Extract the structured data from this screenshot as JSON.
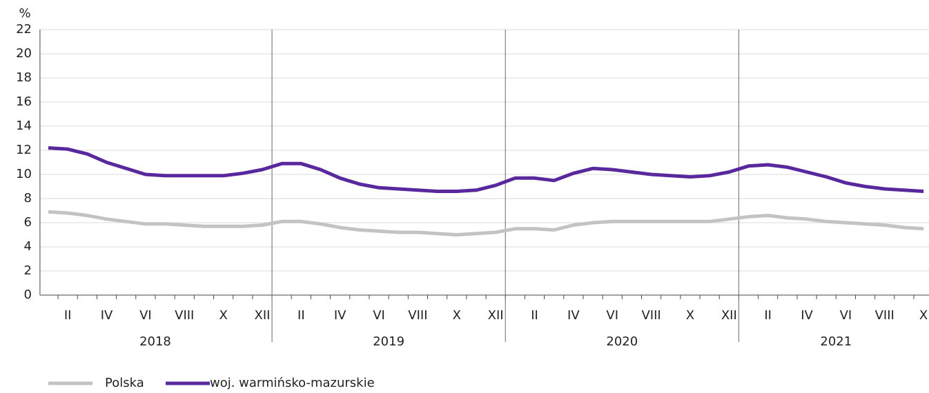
{
  "chart_data": {
    "type": "line",
    "y_label": "%",
    "categories": [
      null,
      "II",
      null,
      "IV",
      null,
      "VI",
      null,
      "VIII",
      null,
      "X",
      null,
      "XII",
      null,
      "II",
      null,
      "IV",
      null,
      "VI",
      null,
      "VIII",
      null,
      "X",
      null,
      "XII",
      null,
      "II",
      null,
      "IV",
      null,
      "VI",
      null,
      "VIII",
      null,
      "X",
      null,
      "XII",
      null,
      "II",
      null,
      "IV",
      null,
      "VI",
      null,
      "VIII",
      null,
      "X"
    ],
    "years": [
      "2018",
      "2019",
      "2020",
      "2021"
    ],
    "series": [
      {
        "name": "Polska",
        "color": "#c3c3c3",
        "values": [
          6.9,
          6.8,
          6.6,
          6.3,
          6.1,
          5.9,
          5.9,
          5.8,
          5.7,
          5.7,
          5.7,
          5.8,
          6.1,
          6.1,
          5.9,
          5.6,
          5.4,
          5.3,
          5.2,
          5.2,
          5.1,
          5.0,
          5.1,
          5.2,
          5.5,
          5.5,
          5.4,
          5.8,
          6.0,
          6.1,
          6.1,
          6.1,
          6.1,
          6.1,
          6.1,
          6.3,
          6.5,
          6.6,
          6.4,
          6.3,
          6.1,
          6.0,
          5.9,
          5.8,
          5.6,
          5.5
        ]
      },
      {
        "name": "woj. warmińsko-mazurskie",
        "color": "#58289c",
        "values": [
          12.2,
          12.1,
          11.7,
          11.0,
          10.5,
          10.0,
          9.9,
          9.9,
          9.9,
          9.9,
          10.1,
          10.4,
          10.9,
          10.9,
          10.4,
          9.7,
          9.2,
          8.9,
          8.8,
          8.7,
          8.6,
          8.6,
          8.7,
          9.1,
          9.7,
          9.7,
          9.5,
          10.1,
          10.5,
          10.4,
          10.2,
          10.0,
          9.9,
          9.8,
          9.9,
          10.2,
          10.7,
          10.8,
          10.6,
          10.2,
          9.8,
          9.3,
          9.0,
          8.8,
          8.7,
          8.6
        ]
      }
    ],
    "ylim": [
      0,
      22
    ],
    "yticks": [
      0,
      2,
      4,
      6,
      8,
      10,
      12,
      14,
      16,
      18,
      20,
      22
    ],
    "grid": true,
    "legend": "bottom-left"
  }
}
